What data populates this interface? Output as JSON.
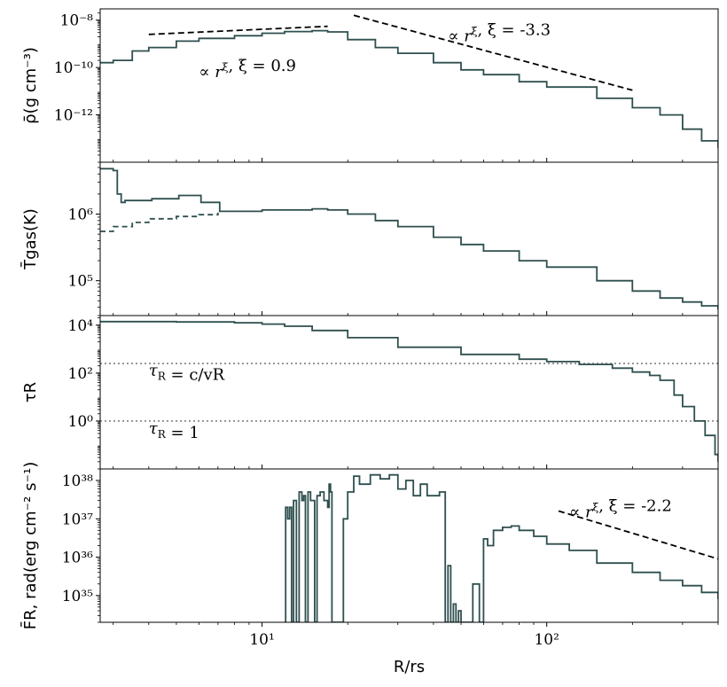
{
  "chart_data": [
    {
      "type": "line",
      "panel": "density",
      "ylabel": "ρ̄(g cm⁻³)",
      "yscale": "log",
      "ylim": [
        1e-14,
        3e-08
      ],
      "yticks": [
        {
          "value": 1e-08,
          "label": "10⁻⁸"
        },
        {
          "value": 1e-10,
          "label": "10⁻¹⁰"
        },
        {
          "value": 1e-12,
          "label": "10⁻¹²"
        }
      ],
      "series": [
        {
          "name": "density",
          "style": "solid",
          "color": "#2f4f4f",
          "x": [
            2.7,
            3.0,
            3.5,
            4.0,
            5.0,
            6.0,
            8.0,
            10,
            12,
            15,
            17,
            20,
            25,
            30,
            40,
            50,
            60,
            80,
            100,
            150,
            200,
            250,
            300,
            350,
            400
          ],
          "y": [
            1.6e-10,
            2e-10,
            5e-10,
            7e-10,
            1.3e-09,
            1.7e-09,
            2.2e-09,
            2.8e-09,
            3.3e-09,
            3.6e-09,
            3.2e-09,
            1.5e-09,
            7e-10,
            4e-10,
            1.6e-10,
            8e-11,
            5e-11,
            2.5e-11,
            1.5e-11,
            5e-12,
            2e-12,
            1e-12,
            2.5e-13,
            8e-14,
            4e-14
          ]
        }
      ],
      "guides": [
        {
          "x": [
            4,
            17
          ],
          "y": [
            2.5e-09,
            5.5e-09
          ],
          "style": "dashed"
        },
        {
          "x": [
            21,
            200
          ],
          "y": [
            1.6e-08,
            1.1e-11
          ],
          "style": "dashed"
        }
      ],
      "annotations": [
        {
          "text": "∝ rξ,  ξ = 0.9",
          "x": 6,
          "y": 4e-11
        },
        {
          "text": "∝ rξ,  ξ = -3.3",
          "x": 45,
          "y": 1.3e-09
        }
      ]
    },
    {
      "type": "line",
      "panel": "temperature",
      "ylabel": "T̄gas(K)",
      "yscale": "log",
      "ylim": [
        30000,
        6000000
      ],
      "yticks": [
        {
          "value": 1000000,
          "label": "10⁶"
        },
        {
          "value": 100000,
          "label": "10⁵"
        }
      ],
      "series": [
        {
          "name": "gas temperature",
          "style": "solid",
          "color": "#2f4f4f",
          "x": [
            2.7,
            3.0,
            3.1,
            3.2,
            3.3,
            4.0,
            4.1,
            5.0,
            5.1,
            6.0,
            6.1,
            7.0,
            7.1,
            10,
            15,
            17,
            20,
            25,
            30,
            40,
            50,
            60,
            80,
            100,
            150,
            200,
            250,
            300,
            350,
            400
          ],
          "y": [
            4800000,
            4500000,
            2000000,
            1500000,
            1600000,
            1600000,
            1700000,
            1700000,
            1900000,
            1900000,
            1500000,
            1500000,
            1100000,
            1150000,
            1200000,
            1150000,
            1000000,
            800000,
            650000,
            450000,
            350000,
            280000,
            200000,
            160000,
            100000,
            70000,
            55000,
            48000,
            42000,
            37000
          ]
        },
        {
          "name": "comparison",
          "style": "dashed",
          "color": "#2f4f4f",
          "x": [
            2.7,
            3.0,
            3.5,
            4.0,
            5.0,
            6.0,
            7.0
          ],
          "y": [
            550000,
            650000,
            750000,
            850000,
            920000,
            980000,
            1050000
          ]
        }
      ]
    },
    {
      "type": "line",
      "panel": "optical depth",
      "ylabel": "τR",
      "yscale": "log",
      "ylim": [
        0.01,
        25000
      ],
      "yticks": [
        {
          "value": 10000,
          "label": "10⁴"
        },
        {
          "value": 100,
          "label": "10²"
        },
        {
          "value": 1,
          "label": "10⁰"
        }
      ],
      "series": [
        {
          "name": "tau",
          "style": "solid",
          "color": "#2f4f4f",
          "x": [
            2.7,
            5,
            8,
            10,
            12,
            15,
            20,
            30,
            50,
            80,
            100,
            130,
            170,
            200,
            230,
            250,
            280,
            300,
            330,
            360,
            390,
            400
          ],
          "y": [
            14000,
            13500,
            12500,
            11000,
            9000,
            6000,
            3000,
            1200,
            600,
            380,
            300,
            230,
            160,
            110,
            80,
            50,
            12,
            4,
            1,
            0.25,
            0.04,
            0.02
          ]
        }
      ],
      "hlines": [
        250,
        1
      ],
      "annotations": [
        {
          "text": "τR = c/vR",
          "x": 4,
          "y": 80
        },
        {
          "text": "τR = 1",
          "x": 4,
          "y": 0.3
        }
      ]
    },
    {
      "type": "line",
      "panel": "radiative flux",
      "ylabel": "F̄R, rad(erg cm⁻² s⁻¹)",
      "yscale": "log",
      "ylim": [
        2e+34,
        2e+38
      ],
      "yticks": [
        {
          "value": 1e+38,
          "label": "10³⁸"
        },
        {
          "value": 1e+37,
          "label": "10³⁷"
        },
        {
          "value": 1e+36,
          "label": "10³⁶"
        },
        {
          "value": 1e+35,
          "label": "10³⁵"
        }
      ],
      "xlabel": "R/rs",
      "xscale": "log",
      "xlim": [
        2.7,
        400
      ],
      "xticks": [
        {
          "value": 10,
          "label": "10¹"
        },
        {
          "value": 100,
          "label": "10²"
        }
      ],
      "series": [
        {
          "name": "flux",
          "style": "solid",
          "color": "#2f4f4f",
          "x": [
            12.0,
            12.1,
            12.3,
            12.5,
            12.7,
            12.9,
            13.2,
            13.5,
            13.8,
            14.0,
            14.2,
            14.5,
            14.8,
            15.0,
            15.3,
            15.6,
            16.0,
            16.5,
            17.0,
            17.2,
            17.4,
            17.6,
            19.0,
            19.3,
            20,
            21,
            22,
            24,
            26,
            28,
            30,
            32,
            34,
            36,
            38,
            40,
            42,
            44,
            45,
            46,
            47,
            48,
            49,
            50,
            55,
            58,
            60,
            62,
            65,
            70,
            75,
            80,
            90,
            100,
            120,
            150,
            200,
            250,
            300,
            350,
            400
          ],
          "y": [
            2e+34,
            2e+37,
            1e+37,
            2e+37,
            2e+34,
            3e+37,
            2e+34,
            5e+37,
            3e+37,
            4e+37,
            2e+34,
            5e+37,
            3e+37,
            3e+37,
            2e+34,
            4e+37,
            5e+37,
            3e+37,
            2e+37,
            8e+37,
            5e+37,
            2e+34,
            2e+34,
            1e+37,
            5e+37,
            1.3e+38,
            8e+37,
            1.4e+38,
            1.1e+38,
            1.4e+38,
            6e+37,
            1e+38,
            4e+37,
            8e+37,
            4e+37,
            4e+37,
            5e+37,
            2e+34,
            6e+35,
            2e+34,
            6e+34,
            2e+34,
            4e+34,
            2e+34,
            2e+35,
            2e+34,
            3e+36,
            2e+36,
            5e+36,
            6e+36,
            6.5e+36,
            5e+36,
            3.5e+36,
            2.2e+36,
            1.5e+36,
            7e+35,
            4e+35,
            2.5e+35,
            1.8e+35,
            1.2e+35,
            8e+34
          ]
        }
      ],
      "guides": [
        {
          "x": [
            110,
            400
          ],
          "y": [
            1.6e+37,
            9e+35
          ],
          "style": "dashed"
        }
      ],
      "annotations": [
        {
          "text": "∝ rξ,  ξ = -2.2",
          "x": 120,
          "y": 1.1e+37
        }
      ]
    }
  ]
}
